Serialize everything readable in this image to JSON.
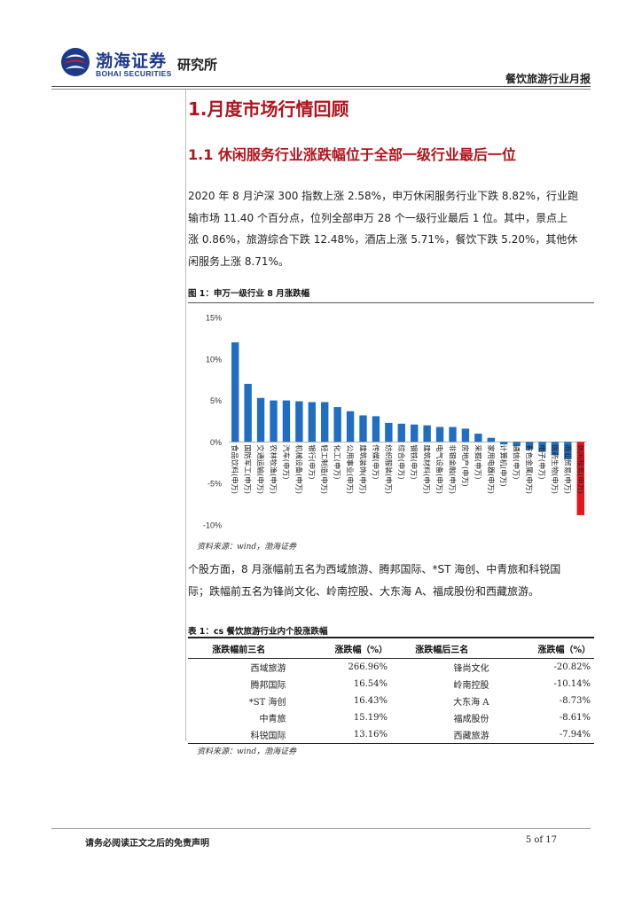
{
  "header": {
    "company_cn": "渤海证券",
    "company_en": "BOHAI SECURITIES",
    "institute": "研究所",
    "report_type": "餐饮旅游行业月报"
  },
  "section": {
    "h1": "1.月度市场行情回顾",
    "h2": "1.1 休闲服务行业涨跌幅位于全部一级行业最后一位",
    "para1_lines": [
      "2020 年 8 月沪深 300 指数上涨 2.58%，申万休闲服务行业下跌 8.82%，行业跑",
      "输市场 11.40 个百分点，位列全部申万 28 个一级行业最后 1 位。其中，景点上",
      "涨 0.86%，旅游综合下跌 12.48%，酒店上涨 5.71%，餐饮下跌 5.20%，其他休",
      "闲服务上涨 8.71%。"
    ],
    "para2_lines": [
      "个股方面，8 月涨幅前五名为西域旅游、腾邦国际、*ST 海创、中青旅和科锐国",
      "际；跌幅前五名为锋尚文化、岭南控股、大东海 A、福成股份和西藏旅游。"
    ]
  },
  "figure": {
    "title": "图 1：申万一级行业 8 月涨跌幅",
    "source": "资料来源：wind，渤海证券"
  },
  "chart_data": {
    "type": "bar",
    "title": "申万一级行业 8 月涨跌幅",
    "ylim": [
      -10,
      15
    ],
    "yticks": [
      "15%",
      "10%",
      "5%",
      "0%",
      "-5%",
      "-10%"
    ],
    "categories": [
      "食品饮料(申万)",
      "国防军工(申万)",
      "交通运输(申万)",
      "农林牧渔(申万)",
      "汽车(申万)",
      "机械设备(申万)",
      "银行(申万)",
      "轻工制造(申万)",
      "化工(申万)",
      "公用事业(申万)",
      "建筑装饰(申万)",
      "传媒(申万)",
      "纺织服装(申万)",
      "综合(申万)",
      "钢铁(申万)",
      "建筑材料(申万)",
      "电气设备(申万)",
      "非银金融(申万)",
      "房地产(申万)",
      "采掘(申万)",
      "家用电器(申万)",
      "计算机(申万)",
      "通信(申万)",
      "有色金属(申万)",
      "电子(申万)",
      "医药生物(申万)",
      "商业贸易(申万)",
      "休闲服务(申万)"
    ],
    "values": [
      12.0,
      7.0,
      5.3,
      5.0,
      5.0,
      4.9,
      4.8,
      4.8,
      4.2,
      3.7,
      3.2,
      3.1,
      2.3,
      2.2,
      2.1,
      2.0,
      1.8,
      1.8,
      1.6,
      1.0,
      0.5,
      -0.3,
      -0.5,
      -0.9,
      -1.2,
      -1.6,
      -2.1,
      -8.82
    ],
    "colors": {
      "positive": "#1f6ec2",
      "negative": "#e8141c"
    }
  },
  "table": {
    "title": "表 1：cs 餐饮旅游行业内个股涨跌幅",
    "headers": [
      "涨跌幅前三名",
      "涨跌幅（%）",
      "涨跌幅后三名",
      "涨跌幅（%）"
    ],
    "rows": [
      [
        "西域旅游",
        "266.96%",
        "锋尚文化",
        "-20.82%"
      ],
      [
        "腾邦国际",
        "16.54%",
        "岭南控股",
        "-10.14%"
      ],
      [
        "*ST 海创",
        "16.43%",
        "大东海 A",
        "-8.73%"
      ],
      [
        "中青旅",
        "15.19%",
        "福成股份",
        "-8.61%"
      ],
      [
        "科锐国际",
        "13.16%",
        "西藏旅游",
        "-7.94%"
      ]
    ],
    "source": "资料来源：wind，渤海证券"
  },
  "footer": {
    "disclaimer": "请务必阅读正文之后的免责声明",
    "page": "5 of 17"
  }
}
